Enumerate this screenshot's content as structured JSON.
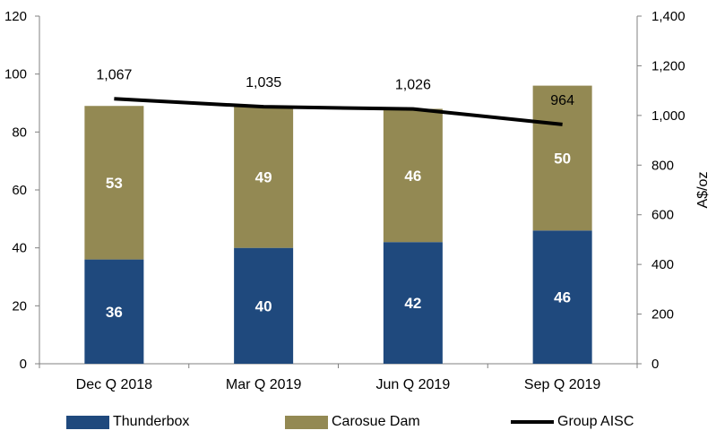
{
  "chart_data": {
    "type": "bar",
    "stacked": true,
    "categories": [
      "Dec Q 2018",
      "Mar Q 2019",
      "Jun Q 2019",
      "Sep Q 2019"
    ],
    "series": [
      {
        "name": "Thunderbox",
        "values": [
          36,
          40,
          42,
          46
        ],
        "color": "#1f497d",
        "axis": "left"
      },
      {
        "name": "Carosue Dam",
        "values": [
          53,
          49,
          46,
          50
        ],
        "color": "#938953",
        "axis": "left"
      }
    ],
    "line_series": {
      "name": "Group AISC",
      "values": [
        1067,
        1035,
        1026,
        964
      ],
      "labels": [
        "1,067",
        "1,035",
        "1,026",
        "964"
      ],
      "color": "#000000",
      "axis": "right"
    },
    "left_axis": {
      "ylim": [
        0,
        120
      ],
      "ticks": [
        "0",
        "20",
        "40",
        "60",
        "80",
        "100",
        "120"
      ]
    },
    "right_axis": {
      "ylabel": "A$/oz",
      "ylim": [
        0,
        1400
      ],
      "ticks": [
        "0",
        "200",
        "400",
        "600",
        "800",
        "1,000",
        "1,200",
        "1,400"
      ]
    },
    "grid": false,
    "legend_position": "bottom"
  }
}
